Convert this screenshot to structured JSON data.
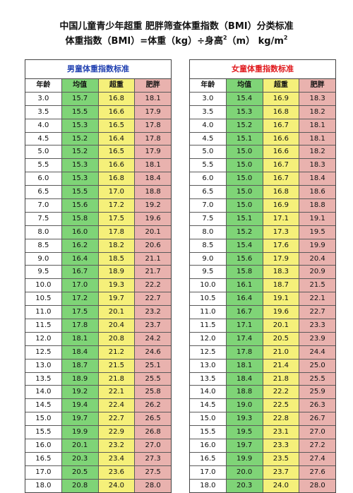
{
  "header": {
    "title": "中国儿童青少年超重 肥胖筛查体重指数（BMI）分类标准",
    "formula_main": "体重指数（BMI）=体重（kg）÷身高",
    "formula_exp": "2",
    "formula_unit": "（m）  kg/m",
    "formula_unit_exp": "2"
  },
  "columns": [
    "年龄",
    "均值",
    "超重",
    "肥胖"
  ],
  "boys": {
    "title": "男童体重指数标准",
    "rows": [
      [
        "3.0",
        "15.7",
        "16.8",
        "18.1"
      ],
      [
        "3.5",
        "15.5",
        "16.6",
        "17.9"
      ],
      [
        "4.0",
        "15.3",
        "16.5",
        "17.8"
      ],
      [
        "4.5",
        "15.2",
        "16.4",
        "17.8"
      ],
      [
        "5.0",
        "15.2",
        "16.5",
        "17.9"
      ],
      [
        "5.5",
        "15.3",
        "16.6",
        "18.1"
      ],
      [
        "6.0",
        "15.3",
        "16.8",
        "18.4"
      ],
      [
        "6.5",
        "15.5",
        "17.0",
        "18.8"
      ],
      [
        "7.0",
        "15.6",
        "17.2",
        "19.2"
      ],
      [
        "7.5",
        "15.8",
        "17.5",
        "19.6"
      ],
      [
        "8.0",
        "16.0",
        "17.8",
        "20.1"
      ],
      [
        "8.5",
        "16.2",
        "18.2",
        "20.6"
      ],
      [
        "9.0",
        "16.4",
        "18.5",
        "21.1"
      ],
      [
        "9.5",
        "16.7",
        "18.9",
        "21.7"
      ],
      [
        "10.0",
        "17.0",
        "19.3",
        "22.2"
      ],
      [
        "10.5",
        "17.2",
        "19.7",
        "22.7"
      ],
      [
        "11.0",
        "17.5",
        "20.1",
        "23.2"
      ],
      [
        "11.5",
        "17.8",
        "20.4",
        "23.7"
      ],
      [
        "12.0",
        "18.1",
        "20.8",
        "24.2"
      ],
      [
        "12.5",
        "18.4",
        "21.2",
        "24.6"
      ],
      [
        "13.0",
        "18.7",
        "21.5",
        "25.1"
      ],
      [
        "13.5",
        "18.9",
        "21.8",
        "25.5"
      ],
      [
        "14.0",
        "19.2",
        "22.1",
        "25.8"
      ],
      [
        "14.5",
        "19.4",
        "22.4",
        "26.2"
      ],
      [
        "15.0",
        "19.7",
        "22.7",
        "26.5"
      ],
      [
        "15.5",
        "19.9",
        "22.9",
        "26.8"
      ],
      [
        "16.0",
        "20.1",
        "23.2",
        "27.0"
      ],
      [
        "16.5",
        "20.3",
        "23.4",
        "27.3"
      ],
      [
        "17.0",
        "20.5",
        "23.6",
        "27.5"
      ],
      [
        "18.0",
        "20.8",
        "24.0",
        "28.0"
      ]
    ]
  },
  "girls": {
    "title": "女童体重指数标准",
    "rows": [
      [
        "3.0",
        "15.4",
        "16.9",
        "18.3"
      ],
      [
        "3.5",
        "15.3",
        "16.8",
        "18.2"
      ],
      [
        "4.0",
        "15.2",
        "16.7",
        "18.1"
      ],
      [
        "4.5",
        "15.1",
        "16.6",
        "18.1"
      ],
      [
        "5.0",
        "15.0",
        "16.6",
        "18.2"
      ],
      [
        "5.5",
        "15.0",
        "16.7",
        "18.3"
      ],
      [
        "6.0",
        "15.0",
        "16.7",
        "18.4"
      ],
      [
        "6.5",
        "15.0",
        "16.8",
        "18.6"
      ],
      [
        "7.0",
        "15.0",
        "16.9",
        "18.8"
      ],
      [
        "7.5",
        "15.1",
        "17.1",
        "19.1"
      ],
      [
        "8.0",
        "15.2",
        "17.3",
        "19.5"
      ],
      [
        "8.5",
        "15.4",
        "17.6",
        "19.9"
      ],
      [
        "9.0",
        "15.6",
        "17.9",
        "20.4"
      ],
      [
        "9.5",
        "15.8",
        "18.3",
        "20.9"
      ],
      [
        "10.0",
        "16.1",
        "18.7",
        "21.5"
      ],
      [
        "10.5",
        "16.4",
        "19.1",
        "22.1"
      ],
      [
        "11.0",
        "16.7",
        "19.6",
        "22.7"
      ],
      [
        "11.5",
        "17.1",
        "20.1",
        "23.3"
      ],
      [
        "12.0",
        "17.4",
        "20.5",
        "23.9"
      ],
      [
        "12.5",
        "17.8",
        "21.0",
        "24.4"
      ],
      [
        "13.0",
        "18.1",
        "21.4",
        "25.0"
      ],
      [
        "13.5",
        "18.4",
        "21.8",
        "25.5"
      ],
      [
        "14.0",
        "18.8",
        "22.2",
        "25.9"
      ],
      [
        "14.5",
        "19.0",
        "22.5",
        "26.3"
      ],
      [
        "15.0",
        "19.3",
        "22.8",
        "26.7"
      ],
      [
        "15.5",
        "19.5",
        "23.1",
        "27.0"
      ],
      [
        "16.0",
        "19.7",
        "23.3",
        "27.2"
      ],
      [
        "16.5",
        "19.9",
        "23.5",
        "27.4"
      ],
      [
        "17.0",
        "20.0",
        "23.7",
        "27.6"
      ],
      [
        "18.0",
        "20.3",
        "24.0",
        "28.0"
      ]
    ]
  },
  "colors": {
    "boys_title": "#1f3fb0",
    "girls_title": "#e0181c",
    "avg": "#7fd477",
    "overweight": "#f5f07a",
    "obese": "#e9b2ae"
  }
}
